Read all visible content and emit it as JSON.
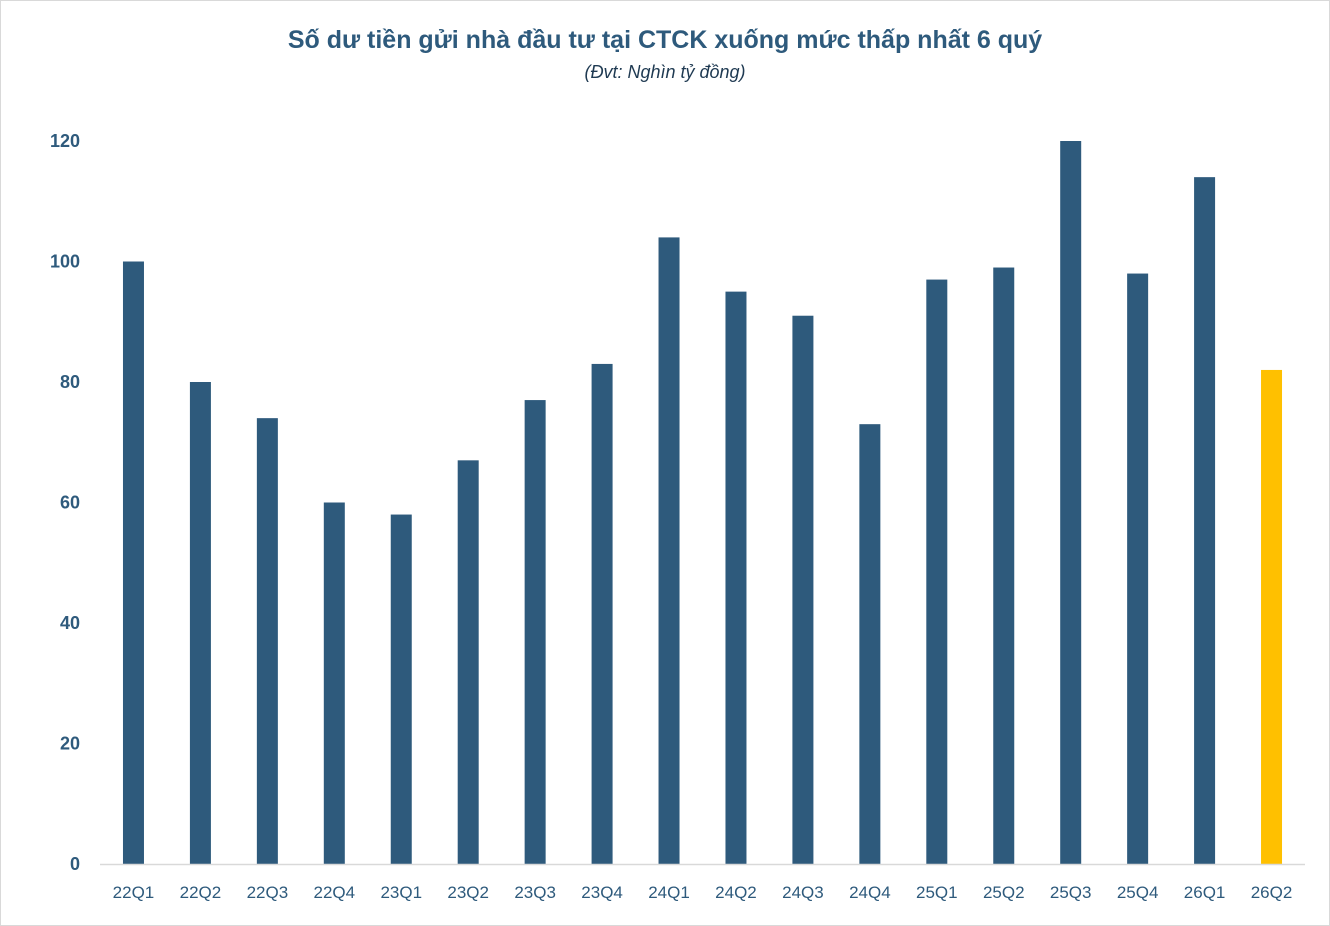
{
  "chart_data": {
    "type": "bar",
    "title": "Số dư tiền gửi nhà đầu tư tại CTCK xuống mức thấp nhất 6 quý",
    "subtitle": "(Đvt: Nghìn tỷ đồng)",
    "categories": [
      "22Q1",
      "22Q2",
      "22Q3",
      "22Q4",
      "23Q1",
      "23Q2",
      "23Q3",
      "23Q4",
      "24Q1",
      "24Q2",
      "24Q3",
      "24Q4",
      "25Q1",
      "25Q2",
      "25Q3",
      "25Q4",
      "26Q1",
      "26Q2"
    ],
    "values": [
      100,
      80,
      74,
      60,
      58,
      67,
      77,
      83,
      104,
      95,
      91,
      73,
      97,
      99,
      120,
      98,
      114,
      82
    ],
    "ylim": [
      0,
      120
    ],
    "yticks": [
      0,
      20,
      40,
      60,
      80,
      100,
      120
    ],
    "grid": false,
    "legend": "none",
    "colors": {
      "bar": "#2e5a7c",
      "highlight": "#ffc000",
      "highlight_index": 17
    }
  }
}
